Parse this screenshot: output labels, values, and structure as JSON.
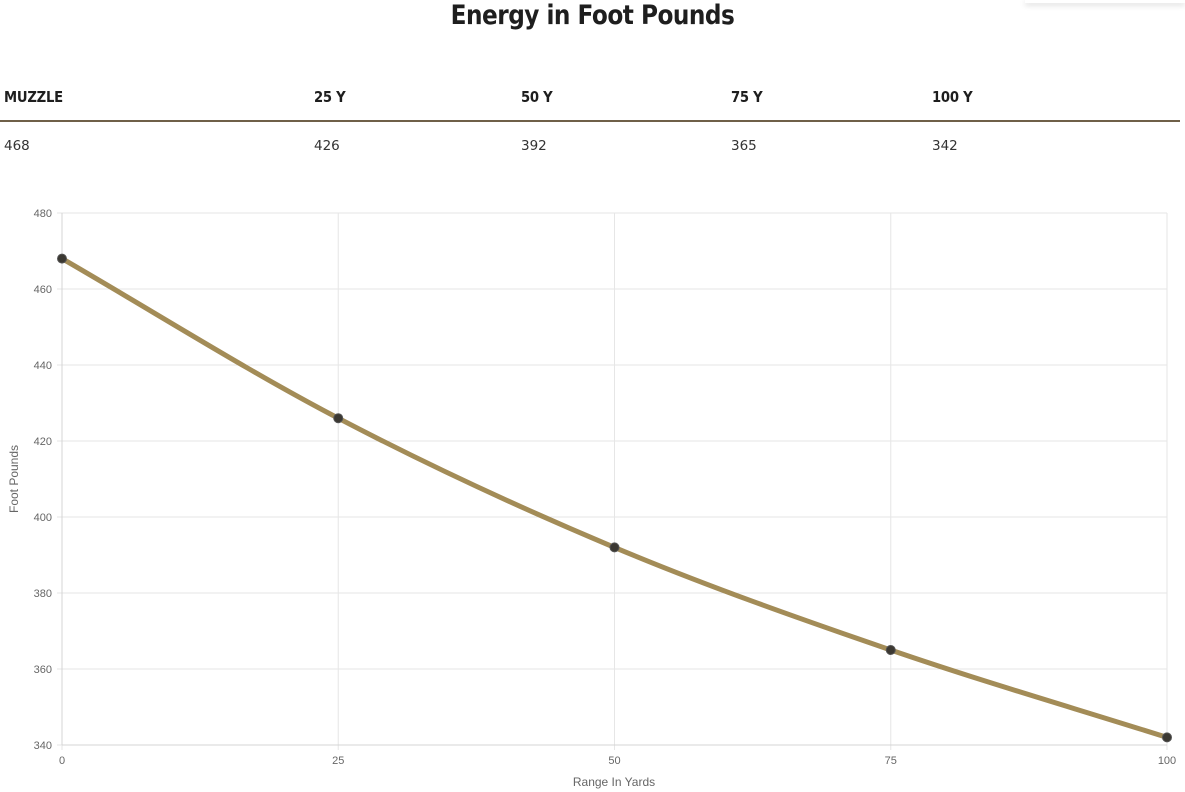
{
  "title": "Energy in Foot Pounds",
  "table": {
    "headers": [
      "MUZZLE",
      "25 Y",
      "50 Y",
      "75 Y",
      "100 Y"
    ],
    "values": [
      "468",
      "426",
      "392",
      "365",
      "342"
    ]
  },
  "chart_data": {
    "type": "line",
    "x": [
      0,
      25,
      50,
      75,
      100
    ],
    "series": [
      {
        "values": [
          468,
          426,
          392,
          365,
          342
        ]
      }
    ],
    "xlabel": "Range In Yards",
    "ylabel": "Foot Pounds",
    "xlim": [
      0,
      100
    ],
    "ylim": [
      340,
      480
    ],
    "xticks": [
      "0",
      "25",
      "50",
      "75",
      "100"
    ],
    "yticks": [
      "340",
      "360",
      "380",
      "400",
      "420",
      "440",
      "460",
      "480"
    ],
    "grid": true,
    "line_color": "#a38c57",
    "point_color": "#3b3832"
  },
  "colors": {
    "rule": "#6f6048",
    "grid": "#e6e6e6"
  }
}
